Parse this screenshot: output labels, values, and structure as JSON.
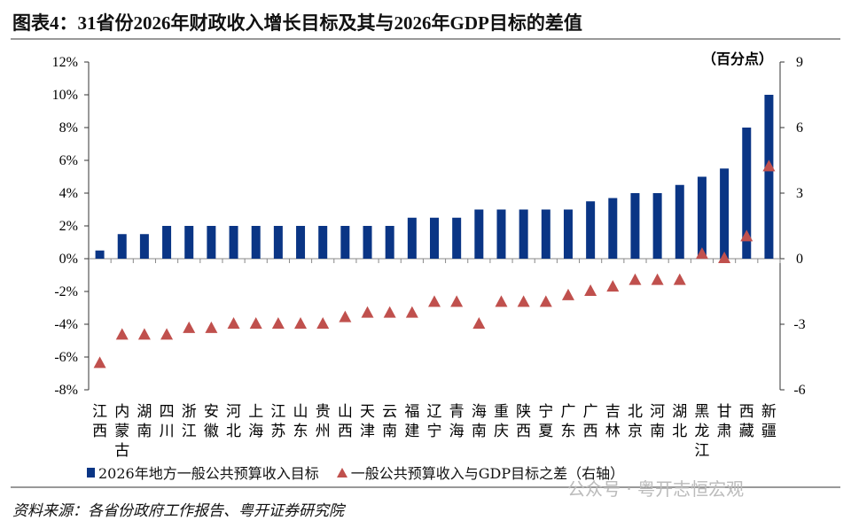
{
  "title": "图表4：31省份2026年财政收入增长目标及其与2026年GDP目标的差值",
  "source": "资料来源：各省份政府工作报告、粤开证券研究院",
  "watermark": "公众号 · 粤开志恒宏观",
  "chart_data": {
    "type": "bar",
    "categories": [
      "江西",
      "内蒙古",
      "湖南",
      "四川",
      "浙江",
      "安徽",
      "河北",
      "上海",
      "江苏",
      "山东",
      "贵州",
      "山西",
      "天津",
      "云南",
      "福建",
      "辽宁",
      "青海",
      "海南",
      "重庆",
      "陕西",
      "宁夏",
      "广东",
      "广西",
      "吉林",
      "北京",
      "河南",
      "湖北",
      "黑龙江",
      "甘肃",
      "西藏",
      "新疆"
    ],
    "series": [
      {
        "name": "2026年地方一般公共预算收入目标",
        "type": "bar",
        "axis": "left",
        "color": "#0a3585",
        "values": [
          0.5,
          1.5,
          1.5,
          2,
          2,
          2,
          2,
          2,
          2,
          2,
          2,
          2,
          2,
          2,
          2.5,
          2.5,
          2.5,
          3,
          3,
          3,
          3,
          3,
          3.5,
          3.7,
          4,
          4,
          4.5,
          5,
          5.5,
          8,
          10
        ]
      },
      {
        "name": "一般公共预算收入与GDP目标之差（右轴）",
        "type": "scatter",
        "marker": "triangle",
        "axis": "right",
        "color": "#c0504d",
        "values": [
          -4.8,
          -3.5,
          -3.5,
          -3.5,
          -3.2,
          -3.2,
          -3,
          -3,
          -3,
          -3,
          -3,
          -2.7,
          -2.5,
          -2.5,
          -2.5,
          -2,
          -2,
          -3,
          -2,
          -2,
          -2,
          -1.7,
          -1.5,
          -1.3,
          -1,
          -1,
          -1,
          0.2,
          0,
          1,
          4.2
        ]
      }
    ],
    "left_axis": {
      "ylim": [
        -8,
        12
      ],
      "ticks": [
        "-8%",
        "-6%",
        "-4%",
        "-2%",
        "0%",
        "2%",
        "4%",
        "6%",
        "8%",
        "10%",
        "12%"
      ],
      "tick_values": [
        -8,
        -6,
        -4,
        -2,
        0,
        2,
        4,
        6,
        8,
        10,
        12
      ]
    },
    "right_axis": {
      "label": "（百分点）",
      "ylim": [
        -6,
        9
      ],
      "ticks": [
        "-6",
        "-3",
        "0",
        "3",
        "6",
        "9"
      ],
      "tick_values": [
        -6,
        -3,
        0,
        3,
        6,
        9
      ]
    },
    "grid": false,
    "legend": "bottom"
  }
}
